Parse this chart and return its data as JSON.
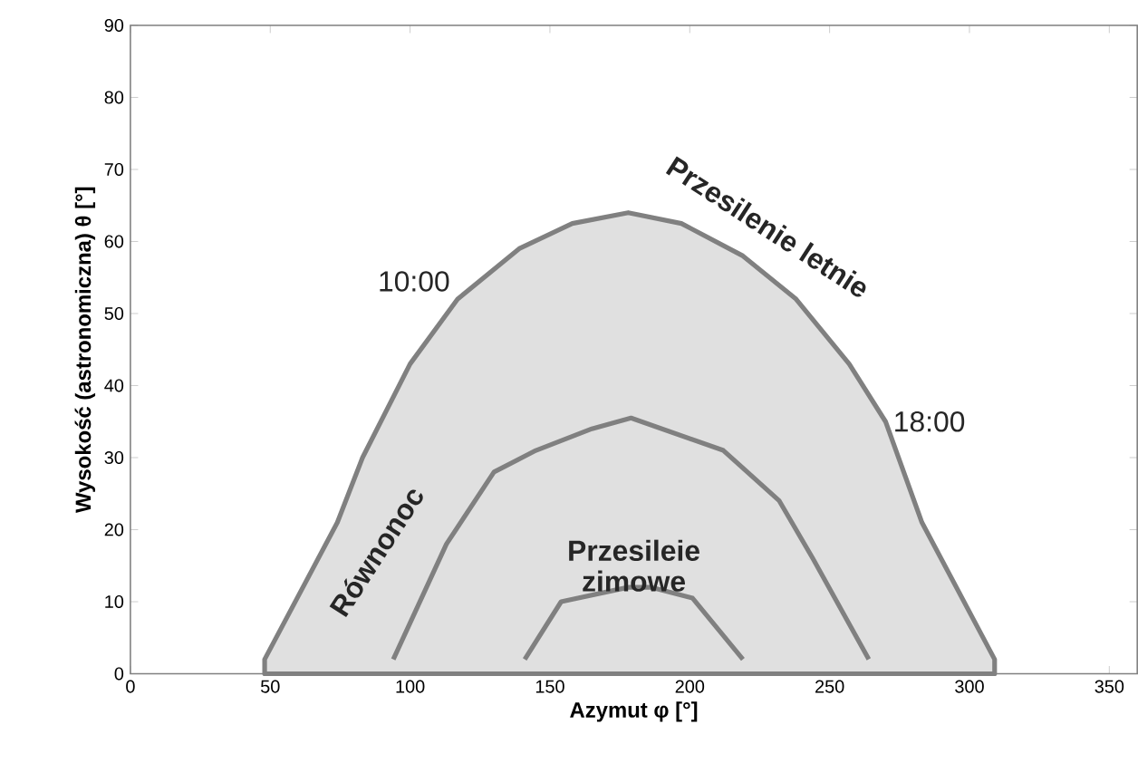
{
  "chart_data": {
    "type": "line",
    "xlabel": "Azymut φ [°]",
    "ylabel": "Wysokość (astronomiczna) θ [°]",
    "xlim": [
      0,
      360
    ],
    "ylim": [
      0,
      90
    ],
    "xticks": [
      0,
      50,
      100,
      150,
      200,
      250,
      300,
      350
    ],
    "yticks": [
      0,
      10,
      20,
      30,
      40,
      50,
      60,
      70,
      80,
      90
    ],
    "grid": false,
    "marker": "none",
    "line_style": "solid",
    "series": [
      {
        "name": "Przesilenie letnie",
        "type": "area",
        "color": "#808080",
        "x": [
          48,
          74,
          83,
          100,
          117,
          139,
          158,
          178,
          197,
          219,
          238,
          257,
          270,
          283,
          309
        ],
        "values": [
          2,
          21,
          30,
          43,
          52,
          59,
          62.5,
          64,
          62.5,
          58,
          52,
          43,
          35,
          21,
          2
        ]
      },
      {
        "name": "Równonoc",
        "color": "#808080",
        "x": [
          94,
          113,
          130,
          145,
          165,
          179,
          212,
          232,
          244,
          264
        ],
        "values": [
          2,
          18,
          28,
          31,
          34,
          35.5,
          31,
          24,
          16,
          2
        ]
      },
      {
        "name": "Przesileie zimowe",
        "color": "#808080",
        "x": [
          141,
          154,
          178,
          186,
          201,
          219
        ],
        "values": [
          2,
          10,
          12,
          12,
          10.5,
          2
        ]
      }
    ],
    "annotations": [
      {
        "text": "10:00",
        "x": 117,
        "y": 52
      },
      {
        "text": "18:00",
        "x": 270,
        "y": 35
      }
    ]
  }
}
